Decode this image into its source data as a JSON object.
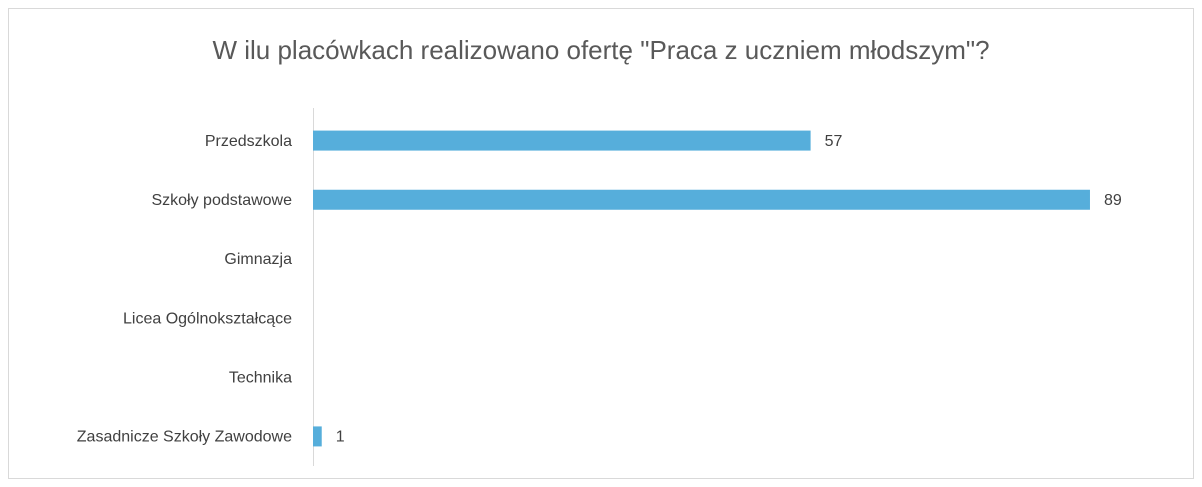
{
  "chart_data": {
    "type": "hbar",
    "title": "W ilu placówkach realizowano ofertę \"Praca z uczniem młodszym\"?",
    "categories": [
      "Przedszkola",
      "Szkoły podstawowe",
      "Gimnazja",
      "Licea Ogólnokształcące",
      "Technika",
      "Zasadnicze Szkoły Zawodowe"
    ],
    "values": [
      57,
      89,
      null,
      null,
      null,
      1
    ],
    "color": "#56aedb",
    "xlim": [
      0,
      100
    ]
  }
}
